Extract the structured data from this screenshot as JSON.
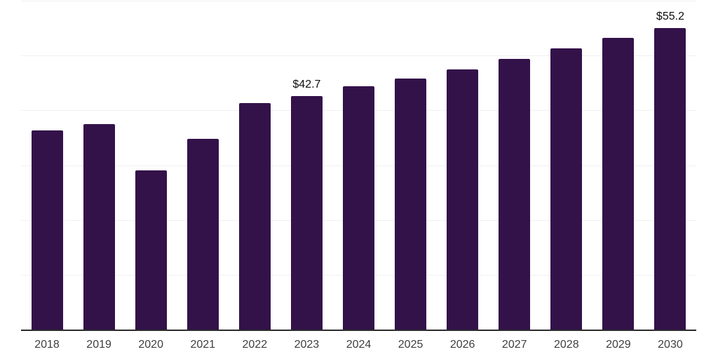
{
  "chart_data": {
    "type": "bar",
    "title": "",
    "xlabel": "",
    "ylabel": "",
    "categories": [
      "2018",
      "2019",
      "2020",
      "2021",
      "2022",
      "2023",
      "2024",
      "2025",
      "2026",
      "2027",
      "2028",
      "2029",
      "2030"
    ],
    "values": [
      36.5,
      37.6,
      29.2,
      34.9,
      41.4,
      42.7,
      44.5,
      45.9,
      47.6,
      49.5,
      51.4,
      53.3,
      55.2
    ],
    "data_labels": {
      "2023": "$42.7",
      "2030": "$55.2"
    },
    "ylim": [
      0,
      60
    ],
    "grid_interval": 10,
    "grid": true,
    "legend": false,
    "colors": {
      "bar": "#33124A",
      "gridline": "#f1f1f1",
      "axis_line": "#2b2b2b",
      "tick_label": "#3f3f3f",
      "data_label": "#0f0f0f",
      "background": "#ffffff"
    }
  }
}
